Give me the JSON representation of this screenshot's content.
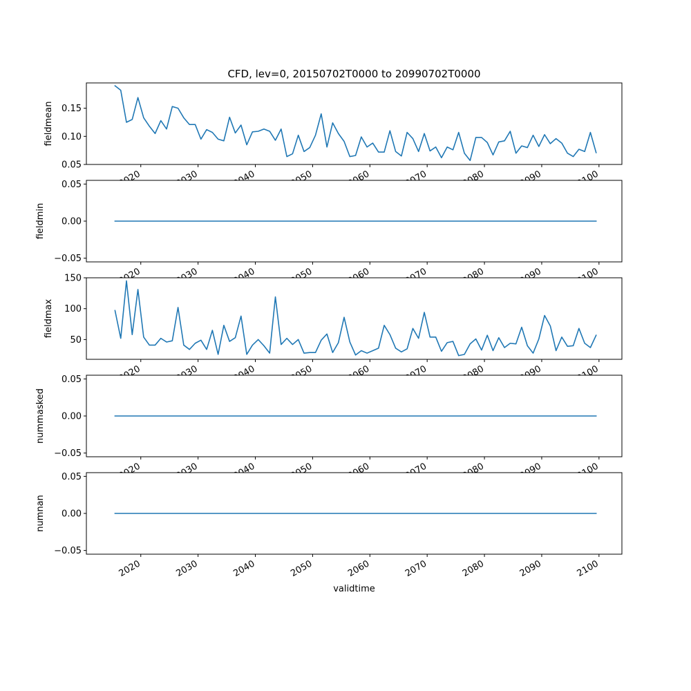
{
  "figure": {
    "title": "CFD, lev=0, 20150702T0000 to 20990702T0000",
    "xlabel": "validtime",
    "line_color": "#1f77b4"
  },
  "chart_data": {
    "type": "line",
    "title": "CFD, lev=0, 20150702T0000 to 20990702T0000",
    "xlabel": "validtime",
    "x_start": 2015.5,
    "x_step": 1,
    "x_count": 85,
    "xlim": [
      2010.5,
      2104.0
    ],
    "x_ticks": [
      2020,
      2030,
      2040,
      2050,
      2060,
      2070,
      2080,
      2090,
      2100
    ],
    "panels": [
      {
        "ylabel": "fieldmean",
        "ylim": [
          0.05,
          0.195
        ],
        "y_ticks": [
          0.05,
          0.1,
          0.15
        ],
        "y_tick_labels": [
          "0.05",
          "0.10",
          "0.15"
        ],
        "values": [
          0.19,
          0.182,
          0.125,
          0.13,
          0.169,
          0.133,
          0.118,
          0.105,
          0.128,
          0.113,
          0.153,
          0.15,
          0.133,
          0.121,
          0.121,
          0.095,
          0.112,
          0.107,
          0.095,
          0.092,
          0.134,
          0.106,
          0.12,
          0.085,
          0.108,
          0.109,
          0.113,
          0.109,
          0.093,
          0.113,
          0.064,
          0.069,
          0.102,
          0.073,
          0.08,
          0.102,
          0.14,
          0.081,
          0.124,
          0.105,
          0.091,
          0.064,
          0.066,
          0.099,
          0.081,
          0.088,
          0.072,
          0.072,
          0.11,
          0.073,
          0.065,
          0.107,
          0.096,
          0.073,
          0.105,
          0.074,
          0.081,
          0.062,
          0.081,
          0.076,
          0.107,
          0.07,
          0.057,
          0.098,
          0.098,
          0.089,
          0.067,
          0.09,
          0.092,
          0.109,
          0.07,
          0.083,
          0.08,
          0.102,
          0.082,
          0.103,
          0.087,
          0.096,
          0.088,
          0.07,
          0.064,
          0.077,
          0.073,
          0.107,
          0.071
        ]
      },
      {
        "ylabel": "fieldmin",
        "ylim": [
          -0.055,
          0.055
        ],
        "y_ticks": [
          -0.05,
          0.0,
          0.05
        ],
        "y_tick_labels": [
          "−0.05",
          "0.00",
          "0.05"
        ],
        "constant": 0.0
      },
      {
        "ylabel": "fieldmax",
        "ylim": [
          18,
          150
        ],
        "y_ticks": [
          50,
          100,
          150
        ],
        "y_tick_labels": [
          "50",
          "100",
          "150"
        ],
        "values": [
          97,
          52,
          145,
          58,
          131,
          54,
          41,
          41,
          52,
          46,
          48,
          102,
          41,
          34,
          44,
          49,
          34,
          65,
          26,
          73,
          47,
          53,
          88,
          26,
          41,
          50,
          40,
          28,
          119,
          42,
          52,
          42,
          50,
          28,
          29,
          29,
          49,
          59,
          29,
          45,
          86,
          46,
          25,
          32,
          28,
          32,
          36,
          73,
          58,
          36,
          30,
          35,
          68,
          52,
          94,
          54,
          54,
          31,
          45,
          47,
          24,
          26,
          43,
          51,
          33,
          57,
          32,
          53,
          37,
          44,
          43,
          70,
          40,
          28,
          51,
          89,
          72,
          32,
          54,
          39,
          40,
          68,
          44,
          37,
          57
        ]
      },
      {
        "ylabel": "nummasked",
        "ylim": [
          -0.055,
          0.055
        ],
        "y_ticks": [
          -0.05,
          0.0,
          0.05
        ],
        "y_tick_labels": [
          "−0.05",
          "0.00",
          "0.05"
        ],
        "constant": 0.0
      },
      {
        "ylabel": "numnan",
        "ylim": [
          -0.055,
          0.055
        ],
        "y_ticks": [
          -0.05,
          0.0,
          0.05
        ],
        "y_tick_labels": [
          "−0.05",
          "0.00",
          "0.05"
        ],
        "constant": 0.0
      }
    ]
  }
}
